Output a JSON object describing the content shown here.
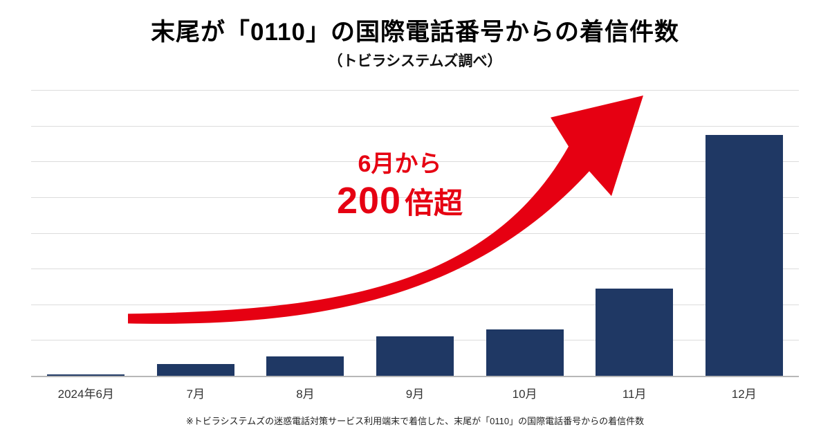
{
  "title": "末尾が「0110」の国際電話番号からの着信件数",
  "subtitle": "（トビラシステムズ調べ）",
  "annotation": {
    "line1": "6月から",
    "line2_number": "200",
    "line2_suffix": "倍超"
  },
  "footnote": "※トビラシステムズの迷惑電話対策サービス利用端末で着信した、末尾が「0110」の国際電話番号からの着信件数",
  "colors": {
    "bar": "#1f3864",
    "arrow": "#e60012",
    "annotation_text": "#e60012",
    "gridline": "#dcdcdc",
    "axis": "#b7b7b7"
  },
  "chart_data": {
    "type": "bar",
    "title": "末尾が「0110」の国際電話番号からの着信件数（トビラシステムズ調べ）",
    "categories": [
      "2024年6月",
      "7月",
      "8月",
      "9月",
      "10月",
      "11月",
      "12月"
    ],
    "values": [
      1,
      10,
      16,
      33,
      39,
      73,
      202
    ],
    "values_are_relative_estimates": true,
    "xlabel": "",
    "ylabel": "",
    "ylim": [
      0,
      240
    ],
    "gridlines": 8,
    "grid": "horizontal",
    "legend": "none",
    "bar_color": "#1f3864",
    "annotations": [
      "6月から",
      "200倍超"
    ]
  }
}
